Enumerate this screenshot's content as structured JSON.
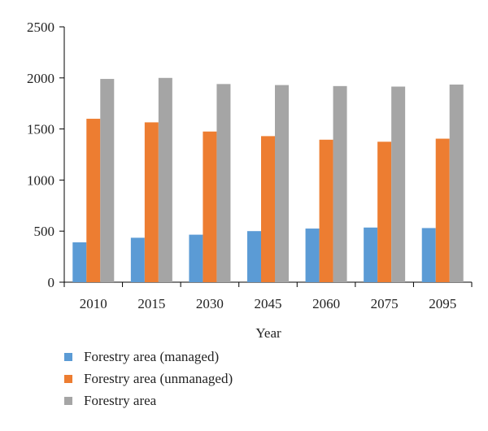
{
  "chart_data": {
    "type": "bar",
    "title": "",
    "xlabel": "Year",
    "ylabel": "",
    "categories": [
      "2010",
      "2015",
      "2030",
      "2045",
      "2060",
      "2075",
      "2095"
    ],
    "series": [
      {
        "name": "Forestry area (managed)",
        "color": "#5b9bd5",
        "values": [
          390,
          435,
          465,
          500,
          525,
          535,
          530
        ]
      },
      {
        "name": "Forestry area (unmanaged)",
        "color": "#ed7d31",
        "values": [
          1600,
          1565,
          1475,
          1430,
          1395,
          1375,
          1405
        ]
      },
      {
        "name": "Forestry area",
        "color": "#a5a5a5",
        "values": [
          1990,
          2000,
          1940,
          1930,
          1920,
          1915,
          1935
        ]
      }
    ],
    "ylim": [
      0,
      2500
    ],
    "yticks": [
      0,
      500,
      1000,
      1500,
      2000,
      2500
    ],
    "grid": false,
    "legend_position": "bottom"
  }
}
